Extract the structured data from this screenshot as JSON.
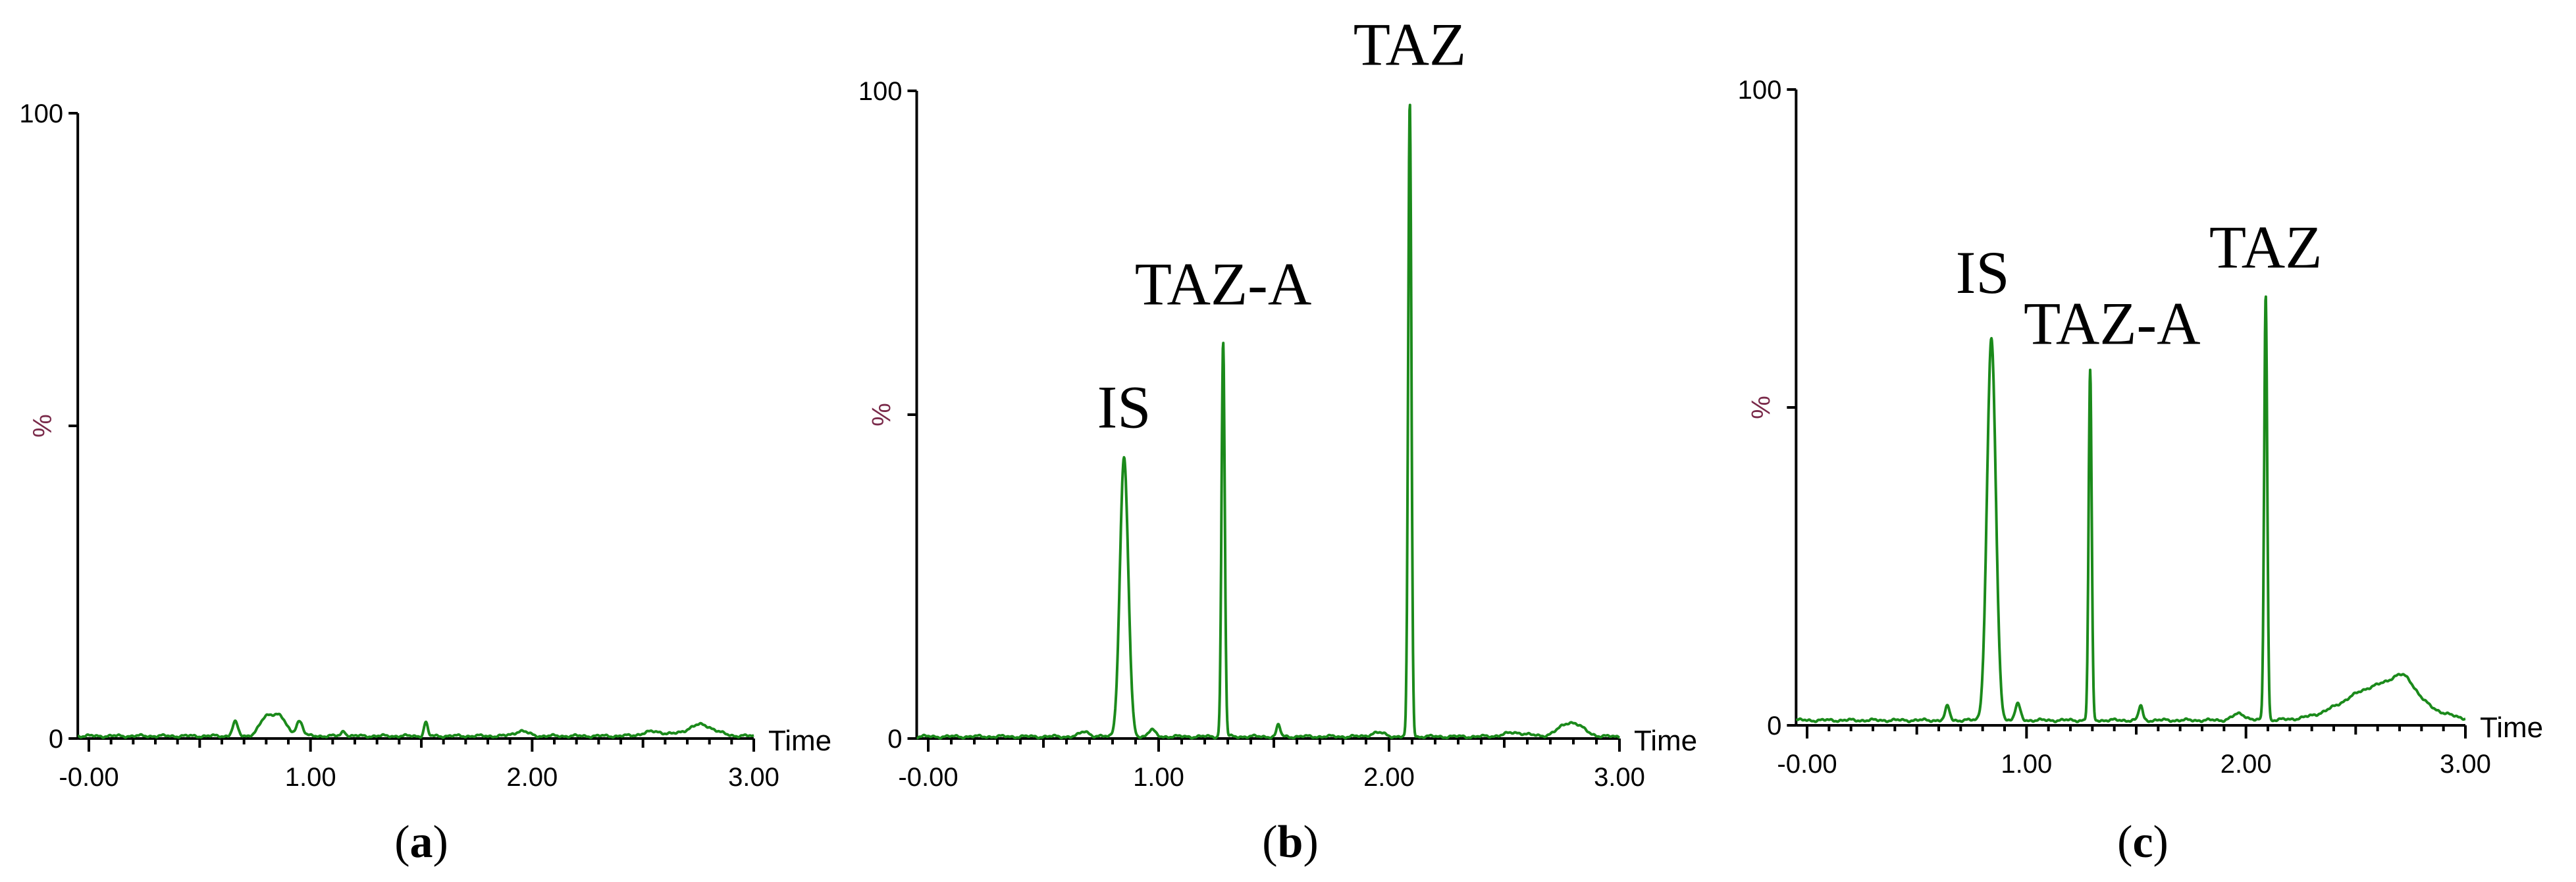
{
  "chart_data": [
    {
      "type": "line",
      "panel": "a",
      "caption_text": "a",
      "xlabel": "Time",
      "ylabel": "%",
      "xlim": [
        -0.05,
        3.0
      ],
      "ylim": [
        0,
        100
      ],
      "x_ticks": [
        "-0.00",
        "1.00",
        "2.00",
        "3.00"
      ],
      "y_ticks": [
        "0",
        "100"
      ],
      "color": "#1b8a1b",
      "baseline": 0.4,
      "peaks": [
        {
          "time": 0.66,
          "height": 2.2,
          "width": 0.012
        },
        {
          "time": 0.8,
          "height": 2.8,
          "width": 0.03
        },
        {
          "time": 0.86,
          "height": 3.0,
          "width": 0.03
        },
        {
          "time": 0.95,
          "height": 2.4,
          "width": 0.015
        },
        {
          "time": 1.15,
          "height": 0.8,
          "width": 0.01
        },
        {
          "time": 1.52,
          "height": 2.2,
          "width": 0.008
        },
        {
          "time": 1.95,
          "height": 0.8,
          "width": 0.03
        },
        {
          "time": 2.55,
          "height": 0.7,
          "width": 0.05
        },
        {
          "time": 2.76,
          "height": 1.8,
          "width": 0.06
        }
      ],
      "annotations": []
    },
    {
      "type": "line",
      "panel": "b",
      "caption_text": "b",
      "xlabel": "Time",
      "ylabel": "%",
      "xlim": [
        -0.05,
        3.0
      ],
      "ylim": [
        0,
        100
      ],
      "x_ticks": [
        "-0.00",
        "1.00",
        "2.00",
        "3.00"
      ],
      "y_ticks": [
        "0",
        "100"
      ],
      "color": "#1b8a1b",
      "baseline": 0.3,
      "peaks": [
        {
          "time": 0.68,
          "height": 0.8,
          "width": 0.02
        },
        {
          "time": 0.85,
          "height": 43,
          "width": 0.018
        },
        {
          "time": 0.97,
          "height": 1.0,
          "width": 0.015
        },
        {
          "time": 1.28,
          "height": 61,
          "width": 0.007
        },
        {
          "time": 1.52,
          "height": 1.8,
          "width": 0.008
        },
        {
          "time": 1.95,
          "height": 0.6,
          "width": 0.03
        },
        {
          "time": 2.09,
          "height": 98,
          "width": 0.007
        },
        {
          "time": 2.55,
          "height": 0.6,
          "width": 0.05
        },
        {
          "time": 2.79,
          "height": 2.2,
          "width": 0.05
        }
      ],
      "annotations": [
        {
          "text": "IS",
          "time": 0.85,
          "y": 48
        },
        {
          "text": "TAZ-A",
          "time": 1.28,
          "y": 67
        },
        {
          "text": "TAZ",
          "time": 2.09,
          "y": 104
        }
      ]
    },
    {
      "type": "line",
      "panel": "c",
      "caption_text": "c",
      "xlabel": "Time",
      "ylabel": "%",
      "xlim": [
        -0.05,
        3.0
      ],
      "ylim": [
        0,
        100
      ],
      "x_ticks": [
        "-0.00",
        "1.00",
        "2.00",
        "3.00"
      ],
      "y_ticks": [
        "0",
        "100"
      ],
      "color": "#1b8a1b",
      "baseline": 0.8,
      "peaks": [
        {
          "time": 0.64,
          "height": 2.2,
          "width": 0.01
        },
        {
          "time": 0.84,
          "height": 60,
          "width": 0.02
        },
        {
          "time": 0.96,
          "height": 2.5,
          "width": 0.012
        },
        {
          "time": 1.29,
          "height": 55,
          "width": 0.007
        },
        {
          "time": 1.52,
          "height": 2.3,
          "width": 0.009
        },
        {
          "time": 1.97,
          "height": 1.0,
          "width": 0.03
        },
        {
          "time": 2.09,
          "height": 67,
          "width": 0.007
        },
        {
          "time": 2.62,
          "height": 5.5,
          "width": 0.16
        },
        {
          "time": 2.72,
          "height": 2.5,
          "width": 0.05
        }
      ],
      "annotations": [
        {
          "text": "IS",
          "time": 0.8,
          "y": 68
        },
        {
          "text": "TAZ-A",
          "time": 1.39,
          "y": 60
        },
        {
          "text": "TAZ",
          "time": 2.09,
          "y": 72
        }
      ]
    }
  ]
}
